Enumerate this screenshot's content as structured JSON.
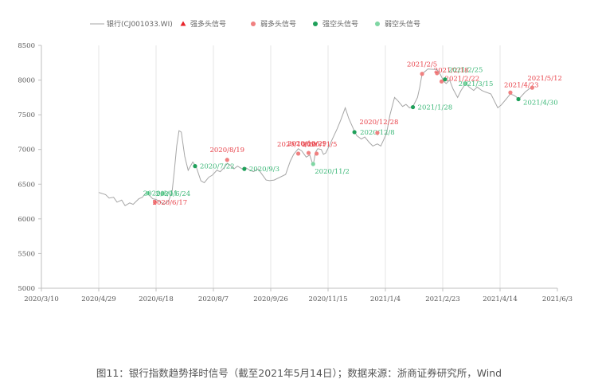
{
  "caption": "图11：银行指数趋势择时信号（截至2021年5月14日）；数据来源：浙商证券研究所，Wind",
  "colors": {
    "line": "#a6a6a6",
    "strong_long": "#e8242a",
    "weak_long": "#f08080",
    "strong_short": "#1fa05a",
    "weak_short": "#7fd6a3",
    "grid": "#e6e6e6",
    "label_red": "#e8424a",
    "label_green": "#3cb878"
  },
  "chart_data": {
    "type": "line",
    "legend": [
      {
        "key": "line",
        "label": "银行(CJ001033.WI)"
      },
      {
        "key": "strong_long",
        "label": "强多头信号"
      },
      {
        "key": "weak_long",
        "label": "弱多头信号"
      },
      {
        "key": "strong_short",
        "label": "强空头信号"
      },
      {
        "key": "weak_short",
        "label": "弱空头信号"
      }
    ],
    "legend_position": "top",
    "x_ticks": [
      "2020/3/10",
      "2020/4/29",
      "2020/6/18",
      "2020/8/7",
      "2020/9/26",
      "2020/11/15",
      "2021/1/4",
      "2021/2/23",
      "2021/4/14",
      "2021/6/3"
    ],
    "x_range": [
      "2020-03-10",
      "2021-06-03"
    ],
    "y_ticks": [
      5000,
      5500,
      6000,
      6500,
      7000,
      7500,
      8000,
      8500
    ],
    "ylim": [
      5000,
      8500
    ],
    "grid": "vertical",
    "series": [
      {
        "name": "银行(CJ001033.WI)",
        "points": [
          [
            "2020-04-29",
            6380
          ],
          [
            "2020-05-05",
            6350
          ],
          [
            "2020-05-08",
            6300
          ],
          [
            "2020-05-12",
            6310
          ],
          [
            "2020-05-15",
            6240
          ],
          [
            "2020-05-19",
            6270
          ],
          [
            "2020-05-22",
            6190
          ],
          [
            "2020-05-26",
            6230
          ],
          [
            "2020-05-29",
            6210
          ],
          [
            "2020-06-03",
            6290
          ],
          [
            "2020-06-06",
            6310
          ],
          [
            "2020-06-09",
            6370
          ],
          [
            "2020-06-12",
            6340
          ],
          [
            "2020-06-15",
            6290
          ],
          [
            "2020-06-18",
            6280
          ],
          [
            "2020-06-22",
            6240
          ],
          [
            "2020-06-25",
            6210
          ],
          [
            "2020-06-29",
            6260
          ],
          [
            "2020-07-02",
            6400
          ],
          [
            "2020-07-04",
            6700
          ],
          [
            "2020-07-06",
            7050
          ],
          [
            "2020-07-08",
            7270
          ],
          [
            "2020-07-10",
            7250
          ],
          [
            "2020-07-13",
            6900
          ],
          [
            "2020-07-16",
            6700
          ],
          [
            "2020-07-20",
            6820
          ],
          [
            "2020-07-23",
            6750
          ],
          [
            "2020-07-27",
            6550
          ],
          [
            "2020-07-30",
            6520
          ],
          [
            "2020-08-03",
            6600
          ],
          [
            "2020-08-06",
            6630
          ],
          [
            "2020-08-10",
            6700
          ],
          [
            "2020-08-13",
            6680
          ],
          [
            "2020-08-17",
            6750
          ],
          [
            "2020-08-19",
            6800
          ],
          [
            "2020-08-22",
            6770
          ],
          [
            "2020-08-25",
            6720
          ],
          [
            "2020-08-28",
            6760
          ],
          [
            "2020-09-01",
            6720
          ],
          [
            "2020-09-04",
            6740
          ],
          [
            "2020-09-08",
            6700
          ],
          [
            "2020-09-11",
            6680
          ],
          [
            "2020-09-15",
            6720
          ],
          [
            "2020-09-18",
            6650
          ],
          [
            "2020-09-22",
            6560
          ],
          [
            "2020-09-25",
            6550
          ],
          [
            "2020-09-29",
            6560
          ],
          [
            "2020-10-09",
            6640
          ],
          [
            "2020-10-13",
            6830
          ],
          [
            "2020-10-16",
            6930
          ],
          [
            "2020-10-20",
            7010
          ],
          [
            "2020-10-23",
            6980
          ],
          [
            "2020-10-27",
            6890
          ],
          [
            "2020-10-30",
            6920
          ],
          [
            "2020-11-02",
            6770
          ],
          [
            "2020-11-04",
            6960
          ],
          [
            "2020-11-06",
            7010
          ],
          [
            "2020-11-09",
            7000
          ],
          [
            "2020-11-11",
            6930
          ],
          [
            "2020-11-13",
            6950
          ],
          [
            "2020-11-16",
            7050
          ],
          [
            "2020-11-19",
            7160
          ],
          [
            "2020-11-23",
            7300
          ],
          [
            "2020-11-26",
            7420
          ],
          [
            "2020-11-30",
            7600
          ],
          [
            "2020-12-03",
            7450
          ],
          [
            "2020-12-07",
            7300
          ],
          [
            "2020-12-10",
            7200
          ],
          [
            "2020-12-14",
            7150
          ],
          [
            "2020-12-17",
            7180
          ],
          [
            "2020-12-21",
            7100
          ],
          [
            "2020-12-24",
            7050
          ],
          [
            "2020-12-28",
            7080
          ],
          [
            "2020-12-31",
            7050
          ],
          [
            "2021-01-05",
            7230
          ],
          [
            "2021-01-08",
            7500
          ],
          [
            "2021-01-12",
            7750
          ],
          [
            "2021-01-15",
            7700
          ],
          [
            "2021-01-19",
            7620
          ],
          [
            "2021-01-22",
            7650
          ],
          [
            "2021-01-25",
            7600
          ],
          [
            "2021-01-28",
            7620
          ],
          [
            "2021-02-01",
            7750
          ],
          [
            "2021-02-03",
            7900
          ],
          [
            "2021-02-05",
            8090
          ],
          [
            "2021-02-08",
            8130
          ],
          [
            "2021-02-10",
            8160
          ],
          [
            "2021-02-18",
            8150
          ],
          [
            "2021-02-21",
            8080
          ],
          [
            "2021-02-24",
            7980
          ],
          [
            "2021-02-26",
            7950
          ],
          [
            "2021-03-01",
            8000
          ],
          [
            "2021-03-04",
            7870
          ],
          [
            "2021-03-08",
            7750
          ],
          [
            "2021-03-11",
            7850
          ],
          [
            "2021-03-15",
            7950
          ],
          [
            "2021-03-18",
            7900
          ],
          [
            "2021-03-22",
            7850
          ],
          [
            "2021-03-25",
            7900
          ],
          [
            "2021-03-29",
            7850
          ],
          [
            "2021-04-01",
            7830
          ],
          [
            "2021-04-06",
            7800
          ],
          [
            "2021-04-09",
            7700
          ],
          [
            "2021-04-12",
            7600
          ],
          [
            "2021-04-15",
            7640
          ],
          [
            "2021-04-19",
            7720
          ],
          [
            "2021-04-22",
            7780
          ],
          [
            "2021-04-23",
            7800
          ],
          [
            "2021-04-26",
            7780
          ],
          [
            "2021-04-28",
            7760
          ],
          [
            "2021-04-30",
            7720
          ],
          [
            "2021-05-06",
            7830
          ],
          [
            "2021-05-10",
            7880
          ],
          [
            "2021-05-12",
            7890
          ],
          [
            "2021-05-14",
            7900
          ]
        ]
      }
    ],
    "signals": [
      {
        "date": "2020-06-11",
        "value": 6370,
        "type": "weak_short",
        "label": "2020/6/11"
      },
      {
        "date": "2020-06-17",
        "value": 6240,
        "type": "weak_long",
        "label": "2020/6/17"
      },
      {
        "date": "2020-06-24",
        "value": 6365,
        "type": "weak_short",
        "label": "2020/6/24"
      },
      {
        "date": "2020-07-22",
        "value": 6760,
        "type": "strong_short",
        "label": "2020/7/22"
      },
      {
        "date": "2020-08-19",
        "value": 6850,
        "type": "weak_long",
        "label": "2020/8/19"
      },
      {
        "date": "2020-09-03",
        "value": 6720,
        "type": "strong_short",
        "label": "2020/9/3"
      },
      {
        "date": "2020-10-20",
        "value": 6940,
        "type": "weak_long",
        "label": "2020/10/20"
      },
      {
        "date": "2020-10-29",
        "value": 6950,
        "type": "weak_long",
        "label": "2020/10/29"
      },
      {
        "date": "2020-11-02",
        "value": 6790,
        "type": "weak_short",
        "label": "2020/11/2"
      },
      {
        "date": "2020-11-05",
        "value": 6940,
        "type": "weak_long",
        "label": "2020/11/5"
      },
      {
        "date": "2020-12-08",
        "value": 7250,
        "type": "strong_short",
        "label": "2020/12/8"
      },
      {
        "date": "2020-12-28",
        "value": 7240,
        "type": "weak_long",
        "label": "2020/12/28"
      },
      {
        "date": "2021-01-28",
        "value": 7610,
        "type": "strong_short",
        "label": "2021/1/28"
      },
      {
        "date": "2021-02-05",
        "value": 8090,
        "type": "weak_long",
        "label": "2021/2/5"
      },
      {
        "date": "2021-02-18",
        "value": 8100,
        "type": "weak_long",
        "label": "2021/2/18"
      },
      {
        "date": "2021-02-22",
        "value": 7980,
        "type": "weak_long",
        "label": "2021/2/22"
      },
      {
        "date": "2021-02-25",
        "value": 8010,
        "type": "strong_short",
        "label": "2021/2/25"
      },
      {
        "date": "2021-04-23",
        "value": 7820,
        "type": "weak_long",
        "label": "2021/4/23"
      },
      {
        "date": "2021-04-30",
        "value": 7725,
        "type": "strong_short",
        "label": "2021/4/30"
      },
      {
        "date": "2021-05-12",
        "value": 7890,
        "type": "weak_long",
        "label": "2021/5/12"
      },
      {
        "date": "2021-03-15",
        "value": 7950,
        "type": "weak_short",
        "label": "2021/3/15"
      }
    ]
  }
}
